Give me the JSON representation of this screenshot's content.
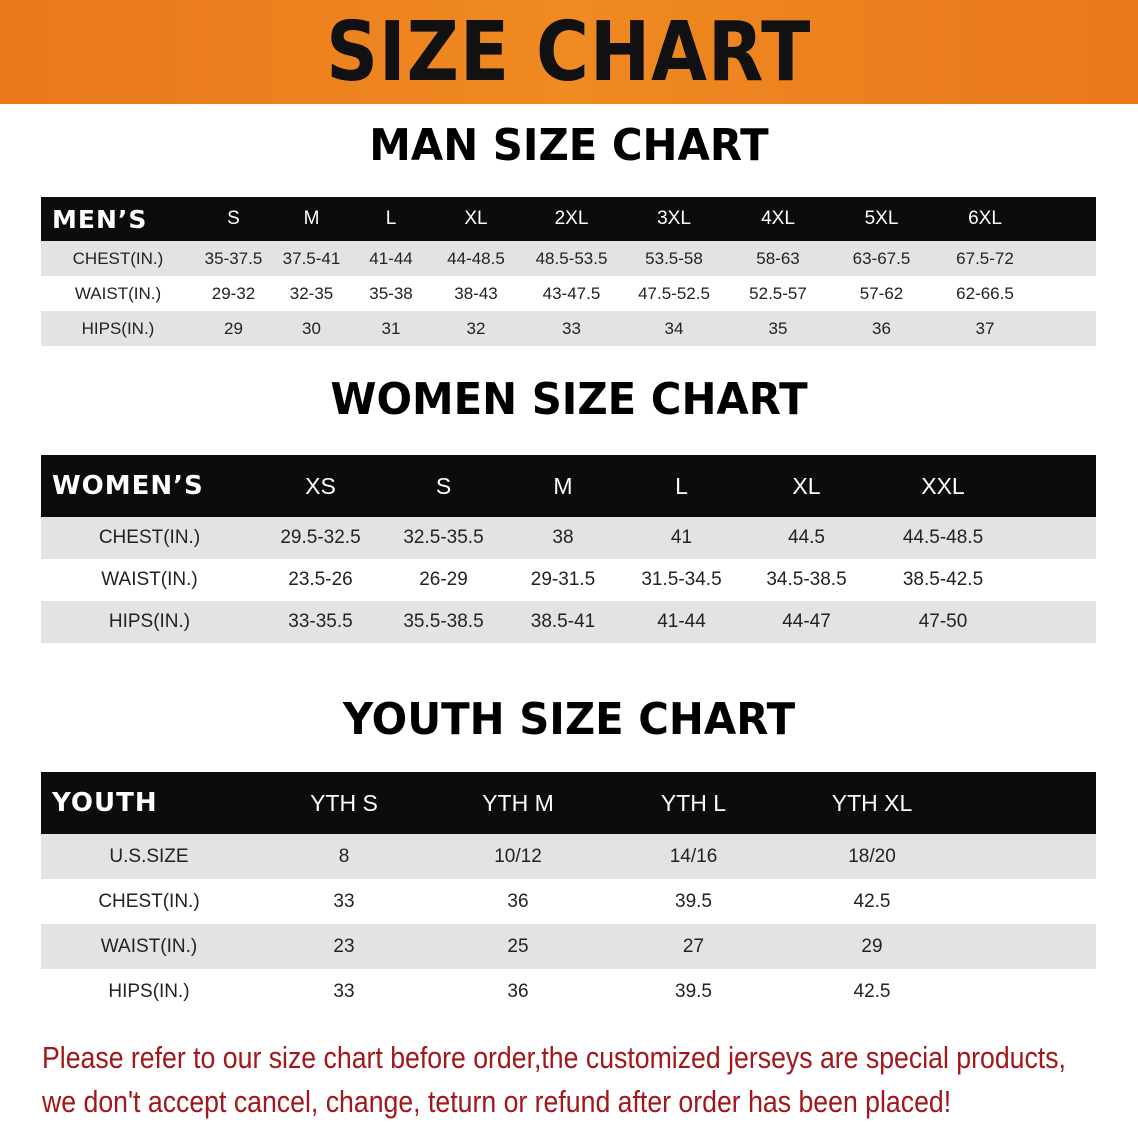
{
  "banner": {
    "title": "SIZE CHART"
  },
  "men": {
    "title": "MAN SIZE CHART",
    "header": [
      "MEN’S",
      "S",
      "M",
      "L",
      "XL",
      "2XL",
      "3XL",
      "4XL",
      "5XL",
      "6XL"
    ],
    "rows": [
      [
        "CHEST(IN.)",
        "35-37.5",
        "37.5-41",
        "41-44",
        "44-48.5",
        "48.5-53.5",
        "53.5-58",
        "58-63",
        "63-67.5",
        "67.5-72"
      ],
      [
        "WAIST(IN.)",
        "29-32",
        "32-35",
        "35-38",
        "38-43",
        "43-47.5",
        "47.5-52.5",
        "52.5-57",
        "57-62",
        "62-66.5"
      ],
      [
        "HIPS(IN.)",
        "29",
        "30",
        "31",
        "32",
        "33",
        "34",
        "35",
        "36",
        "37"
      ]
    ]
  },
  "women": {
    "title": "WOMEN SIZE CHART",
    "header": [
      "WOMEN’S",
      "XS",
      "S",
      "M",
      "L",
      "XL",
      "XXL"
    ],
    "rows": [
      [
        "CHEST(IN.)",
        "29.5-32.5",
        "32.5-35.5",
        "38",
        "41",
        "44.5",
        "44.5-48.5"
      ],
      [
        "WAIST(IN.)",
        "23.5-26",
        "26-29",
        "29-31.5",
        "31.5-34.5",
        "34.5-38.5",
        "38.5-42.5"
      ],
      [
        "HIPS(IN.)",
        "33-35.5",
        "35.5-38.5",
        "38.5-41",
        "41-44",
        "44-47",
        "47-50"
      ]
    ]
  },
  "youth": {
    "title": "YOUTH SIZE CHART",
    "header": [
      "YOUTH",
      "YTH S",
      "YTH M",
      "YTH L",
      "YTH XL"
    ],
    "rows": [
      [
        "U.S.SIZE",
        "8",
        "10/12",
        "14/16",
        "18/20"
      ],
      [
        "CHEST(IN.)",
        "33",
        "36",
        "39.5",
        "42.5"
      ],
      [
        "WAIST(IN.)",
        "23",
        "25",
        "27",
        "29"
      ],
      [
        "HIPS(IN.)",
        "33",
        "36",
        "39.5",
        "42.5"
      ]
    ]
  },
  "note": {
    "line1": "Please refer to our size chart before order,the customized jerseys are special products,",
    "line2": "we don't accept cancel, change, teturn or refund after order has been placed!"
  },
  "colors": {
    "banner": "#f08a22",
    "header_row": "#0c0c0c",
    "stripe": "#e3e3e3",
    "note_text": "#a3171b"
  }
}
